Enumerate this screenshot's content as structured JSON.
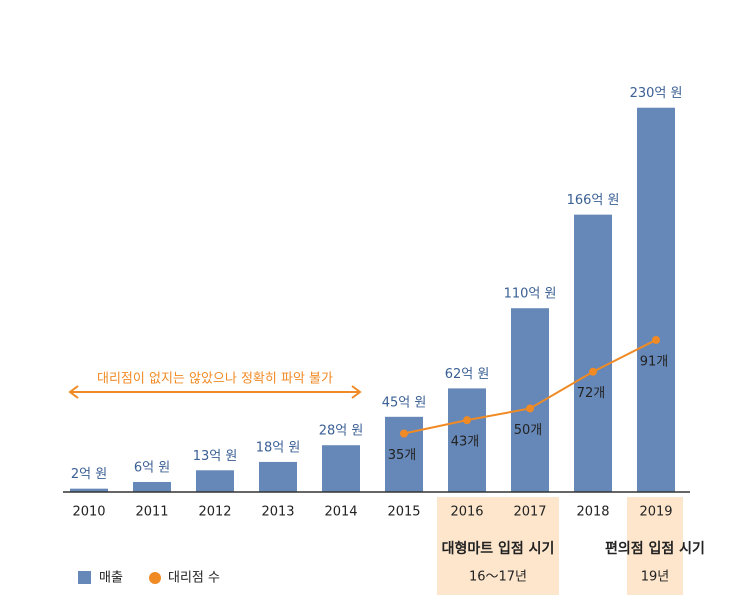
{
  "chart_data": {
    "type": "bar",
    "categories": [
      "2010",
      "2011",
      "2012",
      "2013",
      "2014",
      "2015",
      "2016",
      "2017",
      "2018",
      "2019"
    ],
    "series": [
      {
        "name": "매출",
        "color": "#6688b8",
        "values": [
          2,
          6,
          13,
          18,
          28,
          45,
          62,
          110,
          166,
          230
        ],
        "value_labels": [
          "2억 원",
          "6억 원",
          "13억 원",
          "18억 원",
          "28억 원",
          "45억 원",
          "62억 원",
          "110억 원",
          "166억 원",
          "230억 원"
        ]
      },
      {
        "name": "대리점 수",
        "type": "line",
        "axis": "y2",
        "color": "#f08a24",
        "values": [
          null,
          null,
          null,
          null,
          null,
          35,
          43,
          50,
          72,
          91
        ],
        "value_labels": [
          null,
          null,
          null,
          null,
          null,
          "35개",
          "43개",
          "50개",
          "72개",
          "91개"
        ]
      }
    ],
    "ylim": [
      0,
      240
    ],
    "y2lim": [
      0,
      240
    ],
    "annotations": [
      "대리점이 없지는 않았으나 정확히 파악 불가"
    ],
    "highlights": [
      {
        "title": "대형마트 입점 시기",
        "label": "16～17년"
      },
      {
        "title": "편의점 입점 시기",
        "label": "19년"
      }
    ],
    "legend": "bottom-left"
  }
}
